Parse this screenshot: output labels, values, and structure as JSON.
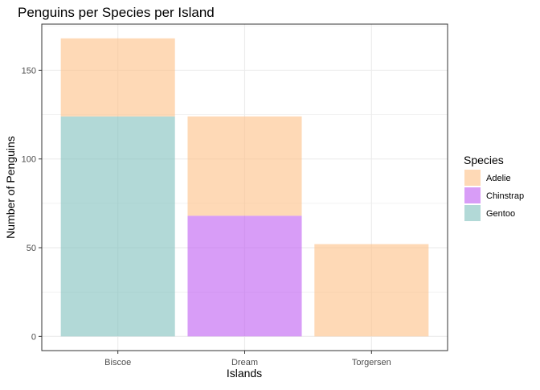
{
  "chart_data": {
    "type": "bar",
    "stacked": true,
    "title": "Penguins per Species per Island",
    "xlabel": "Islands",
    "ylabel": "Number of Penguins",
    "categories": [
      "Biscoe",
      "Dream",
      "Torgersen"
    ],
    "series": [
      {
        "name": "Adelie",
        "color": "#FDC086",
        "values": [
          44,
          56,
          52
        ]
      },
      {
        "name": "Chinstrap",
        "color": "#BE5BF2",
        "values": [
          0,
          68,
          0
        ]
      },
      {
        "name": "Gentoo",
        "color": "#7FBFBD",
        "values": [
          124,
          0,
          0
        ]
      }
    ],
    "stack_order": [
      "Gentoo",
      "Chinstrap",
      "Adelie"
    ],
    "bar_opacity": 0.6,
    "ylim": [
      -8,
      176
    ],
    "yticks": [
      0,
      50,
      100,
      150
    ],
    "grid": true,
    "legend": {
      "title": "Species",
      "placement": "right"
    }
  }
}
